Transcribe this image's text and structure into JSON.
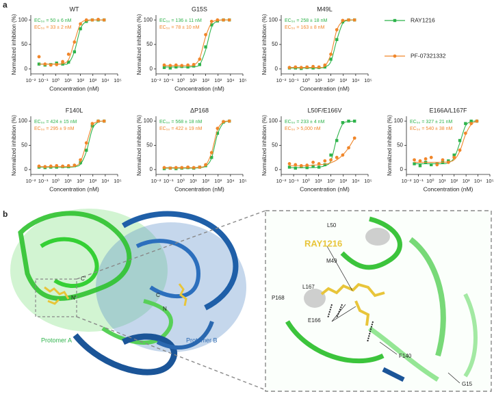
{
  "panels": [
    "a",
    "b"
  ],
  "legend": [
    {
      "name": "RAY1216",
      "color": "#2eb34b",
      "marker": "square"
    },
    {
      "name": "PF-07321332",
      "color": "#f0862a",
      "marker": "circle"
    }
  ],
  "chart_data": [
    {
      "type": "scatter",
      "title": "WT",
      "xlabel": "Concentration (nM)",
      "ylabel": "Normalized inhibition (%)",
      "xscale": "log",
      "x": [
        0.046,
        0.14,
        0.41,
        1.2,
        3.7,
        11,
        33,
        100,
        300,
        900,
        2700,
        8100
      ],
      "xlim": [
        0.01,
        100000
      ],
      "xticks": [
        {
          "value": 0.01,
          "label": "10⁻²"
        },
        {
          "value": 0.1,
          "label": "10⁻¹"
        },
        {
          "value": 1,
          "label": "10⁰"
        },
        {
          "value": 10,
          "label": "10¹"
        },
        {
          "value": 100,
          "label": "10²"
        },
        {
          "value": 1000,
          "label": "10³"
        },
        {
          "value": 10000,
          "label": "10⁴"
        },
        {
          "value": 100000,
          "label": "10⁵"
        }
      ],
      "ylim": [
        -10,
        110
      ],
      "yticks": [
        0,
        50,
        100
      ],
      "series": [
        {
          "color": "#2eb34b",
          "marker": "square",
          "label": "EC₅₀ = 50 ± 6 nM",
          "values": [
            10,
            8,
            9,
            12,
            10,
            14,
            35,
            82,
            97,
            100,
            100,
            100
          ],
          "fit": [
            10,
            10,
            10,
            10,
            10,
            12,
            36,
            82,
            97,
            100,
            100,
            100
          ]
        },
        {
          "color": "#f0862a",
          "marker": "circle",
          "label": "EC₅₀ = 33 ± 2 nM",
          "values": [
            25,
            10,
            8,
            9,
            15,
            30,
            55,
            92,
            100,
            100,
            101,
            100
          ],
          "fit": [
            10,
            10,
            10,
            10,
            11,
            19,
            56,
            92,
            99,
            100,
            100,
            100
          ]
        }
      ]
    },
    {
      "type": "scatter",
      "title": "G15S",
      "xlabel": "Concentration (nM)",
      "ylabel": "Normalized inhibition (%)",
      "xscale": "log",
      "x": [
        0.046,
        0.14,
        0.41,
        1.2,
        3.7,
        11,
        33,
        100,
        300,
        900,
        2700,
        8100
      ],
      "xlim": [
        0.01,
        100000
      ],
      "xticks": [
        {
          "value": 0.01,
          "label": "10⁻²"
        },
        {
          "value": 0.1,
          "label": "10⁻¹"
        },
        {
          "value": 1,
          "label": "10⁰"
        },
        {
          "value": 10,
          "label": "10¹"
        },
        {
          "value": 100,
          "label": "10²"
        },
        {
          "value": 1000,
          "label": "10³"
        },
        {
          "value": 10000,
          "label": "10⁴"
        },
        {
          "value": 100000,
          "label": "10⁵"
        }
      ],
      "ylim": [
        -10,
        110
      ],
      "yticks": [
        0,
        50,
        100
      ],
      "series": [
        {
          "color": "#2eb34b",
          "marker": "square",
          "label": "EC₅₀ = 136 ± 11 nM",
          "values": [
            3,
            2,
            4,
            5,
            4,
            6,
            9,
            45,
            90,
            98,
            100,
            100
          ],
          "fit": [
            4,
            4,
            4,
            4,
            4,
            5,
            9,
            39,
            85,
            98,
            100,
            100
          ]
        },
        {
          "color": "#f0862a",
          "marker": "circle",
          "label": "EC₅₀ = 78 ± 10 nM",
          "values": [
            8,
            7,
            8,
            7,
            8,
            9,
            20,
            70,
            97,
            100,
            100,
            100
          ],
          "fit": [
            7,
            7,
            7,
            7,
            7,
            8,
            22,
            66,
            94,
            99,
            100,
            100
          ]
        }
      ]
    },
    {
      "type": "scatter",
      "title": "M49L",
      "xlabel": "Concentration (nM)",
      "ylabel": "Normalized inhibition (%)",
      "xscale": "log",
      "x": [
        0.046,
        0.14,
        0.41,
        1.2,
        3.7,
        11,
        33,
        100,
        300,
        900,
        2700,
        8100
      ],
      "xlim": [
        0.01,
        100000
      ],
      "xticks": [
        {
          "value": 0.01,
          "label": "10⁻²"
        },
        {
          "value": 0.1,
          "label": "10⁻¹"
        },
        {
          "value": 1,
          "label": "10⁰"
        },
        {
          "value": 10,
          "label": "10¹"
        },
        {
          "value": 100,
          "label": "10²"
        },
        {
          "value": 1000,
          "label": "10³"
        },
        {
          "value": 10000,
          "label": "10⁴"
        },
        {
          "value": 100000,
          "label": "10⁵"
        }
      ],
      "ylim": [
        -10,
        110
      ],
      "yticks": [
        0,
        50,
        100
      ],
      "series": [
        {
          "color": "#2eb34b",
          "marker": "square",
          "label": "EC₅₀ = 258 ± 18 nM",
          "values": [
            2,
            2,
            1,
            3,
            2,
            3,
            4,
            20,
            60,
            96,
            100,
            100
          ],
          "fit": [
            2,
            2,
            2,
            2,
            2,
            2,
            4,
            15,
            59,
            93,
            99,
            100
          ]
        },
        {
          "color": "#f0862a",
          "marker": "circle",
          "label": "EC₅₀ = 163 ± 8 nM",
          "values": [
            3,
            4,
            3,
            4,
            5,
            4,
            8,
            30,
            80,
            99,
            100,
            100
          ],
          "fit": [
            3,
            3,
            3,
            3,
            3,
            3,
            6,
            30,
            79,
            97,
            100,
            100
          ]
        }
      ]
    },
    {
      "type": "scatter",
      "title": "F140L",
      "xlabel": "Concentration (nM)",
      "ylabel": "Normalized inhibition (%)",
      "xscale": "log",
      "x": [
        0.046,
        0.14,
        0.41,
        1.2,
        3.7,
        11,
        33,
        100,
        300,
        900,
        2700,
        8100
      ],
      "xlim": [
        0.01,
        100000
      ],
      "xticks": [
        {
          "value": 0.01,
          "label": "10⁻²"
        },
        {
          "value": 0.1,
          "label": "10⁻¹"
        },
        {
          "value": 1,
          "label": "10⁰"
        },
        {
          "value": 10,
          "label": "10¹"
        },
        {
          "value": 100,
          "label": "10²"
        },
        {
          "value": 1000,
          "label": "10³"
        },
        {
          "value": 10000,
          "label": "10⁴"
        },
        {
          "value": 100000,
          "label": "10⁵"
        }
      ],
      "ylim": [
        -10,
        110
      ],
      "yticks": [
        0,
        50,
        100
      ],
      "series": [
        {
          "color": "#2eb34b",
          "marker": "square",
          "label": "EC₅₀ = 424 ± 15 nM",
          "values": [
            5,
            4,
            5,
            5,
            6,
            6,
            8,
            14,
            40,
            90,
            100,
            100
          ],
          "fit": [
            5,
            5,
            5,
            5,
            5,
            5,
            6,
            11,
            37,
            83,
            98,
            100
          ]
        },
        {
          "color": "#f0862a",
          "marker": "circle",
          "label": "EC₅₀ = 295 ± 9 nM",
          "values": [
            7,
            6,
            7,
            8,
            7,
            8,
            9,
            20,
            55,
            95,
            100,
            100
          ],
          "fit": [
            6,
            6,
            6,
            6,
            6,
            6,
            7,
            16,
            53,
            91,
            99,
            100
          ]
        }
      ]
    },
    {
      "type": "scatter",
      "title": "ΔP168",
      "xlabel": "Concentration (nM)",
      "ylabel": "Normalized inhibition (%)",
      "xscale": "log",
      "x": [
        0.046,
        0.14,
        0.41,
        1.2,
        3.7,
        11,
        33,
        100,
        300,
        900,
        2700,
        8100
      ],
      "xlim": [
        0.01,
        100000
      ],
      "xticks": [
        {
          "value": 0.01,
          "label": "10⁻²"
        },
        {
          "value": 0.1,
          "label": "10⁻¹"
        },
        {
          "value": 1,
          "label": "10⁰"
        },
        {
          "value": 10,
          "label": "10¹"
        },
        {
          "value": 100,
          "label": "10²"
        },
        {
          "value": 1000,
          "label": "10³"
        },
        {
          "value": 10000,
          "label": "10⁴"
        },
        {
          "value": 100000,
          "label": "10⁵"
        }
      ],
      "ylim": [
        -10,
        110
      ],
      "yticks": [
        0,
        50,
        100
      ],
      "series": [
        {
          "color": "#2eb34b",
          "marker": "square",
          "label": "EC₅₀ = 568 ± 18 nM",
          "values": [
            2,
            3,
            2,
            3,
            4,
            3,
            5,
            8,
            25,
            75,
            98,
            100
          ],
          "fit": [
            3,
            3,
            3,
            3,
            3,
            3,
            4,
            7,
            24,
            73,
            96,
            100
          ]
        },
        {
          "color": "#f0862a",
          "marker": "circle",
          "label": "EC₅₀ = 422 ± 19 nM",
          "values": [
            4,
            3,
            4,
            4,
            5,
            4,
            5,
            10,
            35,
            85,
            99,
            100
          ],
          "fit": [
            4,
            4,
            4,
            4,
            4,
            4,
            5,
            9,
            35,
            82,
            98,
            100
          ]
        }
      ]
    },
    {
      "type": "scatter",
      "title": "L50F/E166V",
      "xlabel": "Concentration (nM)",
      "ylabel": "Normalized inhibition (%)",
      "xscale": "log",
      "x": [
        0.046,
        0.14,
        0.41,
        1.2,
        3.7,
        11,
        33,
        100,
        300,
        900,
        2700,
        8100
      ],
      "xlim": [
        0.01,
        100000
      ],
      "xticks": [
        {
          "value": 0.01,
          "label": "10⁻²"
        },
        {
          "value": 0.1,
          "label": "10⁻¹"
        },
        {
          "value": 1,
          "label": "10⁰"
        },
        {
          "value": 10,
          "label": "10¹"
        },
        {
          "value": 100,
          "label": "10²"
        },
        {
          "value": 1000,
          "label": "10³"
        },
        {
          "value": 10000,
          "label": "10⁴"
        },
        {
          "value": 100000,
          "label": "10⁵"
        }
      ],
      "ylim": [
        -10,
        110
      ],
      "yticks": [
        0,
        50,
        100
      ],
      "series": [
        {
          "color": "#2eb34b",
          "marker": "square",
          "label": "EC₅₀ = 233 ± 4 nM",
          "values": [
            5,
            3,
            6,
            4,
            7,
            5,
            10,
            30,
            60,
            97,
            100,
            100
          ],
          "fit": [
            4,
            4,
            4,
            4,
            4,
            5,
            8,
            18,
            64,
            94,
            99,
            100
          ]
        },
        {
          "color": "#f0862a",
          "marker": "circle",
          "label": "EC₅₀ > 5,000 nM",
          "values": [
            12,
            10,
            8,
            9,
            15,
            12,
            18,
            20,
            25,
            30,
            45,
            65
          ],
          "fit": [
            8,
            8,
            8,
            8,
            9,
            10,
            11,
            14,
            20,
            30,
            45,
            65
          ]
        }
      ]
    },
    {
      "type": "scatter",
      "title": "E166A/L167F",
      "xlabel": "Concentration (nM)",
      "ylabel": "Normalized inhibition (%)",
      "xscale": "log",
      "x": [
        0.046,
        0.14,
        0.41,
        1.2,
        3.7,
        11,
        33,
        100,
        300,
        900,
        2700,
        8100
      ],
      "xlim": [
        0.01,
        100000
      ],
      "xticks": [
        {
          "value": 0.01,
          "label": "10⁻²"
        },
        {
          "value": 0.1,
          "label": "10⁻¹"
        },
        {
          "value": 1,
          "label": "10⁰"
        },
        {
          "value": 10,
          "label": "10¹"
        },
        {
          "value": 100,
          "label": "10²"
        },
        {
          "value": 1000,
          "label": "10³"
        },
        {
          "value": 10000,
          "label": "10⁴"
        },
        {
          "value": 100000,
          "label": "10⁵"
        }
      ],
      "ylim": [
        -10,
        110
      ],
      "yticks": [
        0,
        50,
        100
      ],
      "series": [
        {
          "color": "#2eb34b",
          "marker": "square",
          "label": "EC₅₀ = 327 ± 21 nM",
          "values": [
            12,
            8,
            15,
            10,
            12,
            15,
            18,
            30,
            60,
            95,
            100,
            100
          ],
          "fit": [
            12,
            12,
            12,
            12,
            12,
            12,
            14,
            24,
            55,
            90,
            99,
            100
          ]
        },
        {
          "color": "#f0862a",
          "marker": "circle",
          "label": "EC₅₀ = 540 ± 38 nM",
          "values": [
            20,
            18,
            22,
            25,
            10,
            20,
            15,
            25,
            40,
            75,
            95,
            100
          ],
          "fit": [
            15,
            15,
            15,
            15,
            15,
            15,
            16,
            20,
            38,
            72,
            93,
            100
          ]
        }
      ]
    }
  ],
  "structure": {
    "ligand": "RAY1216",
    "residues": [
      "L50",
      "M49",
      "P168",
      "L167",
      "E166",
      "F140",
      "G15"
    ],
    "termini": [
      "C′",
      "N′",
      "C",
      "N"
    ],
    "protomers": [
      "Protomer A",
      "Protomer B"
    ]
  }
}
